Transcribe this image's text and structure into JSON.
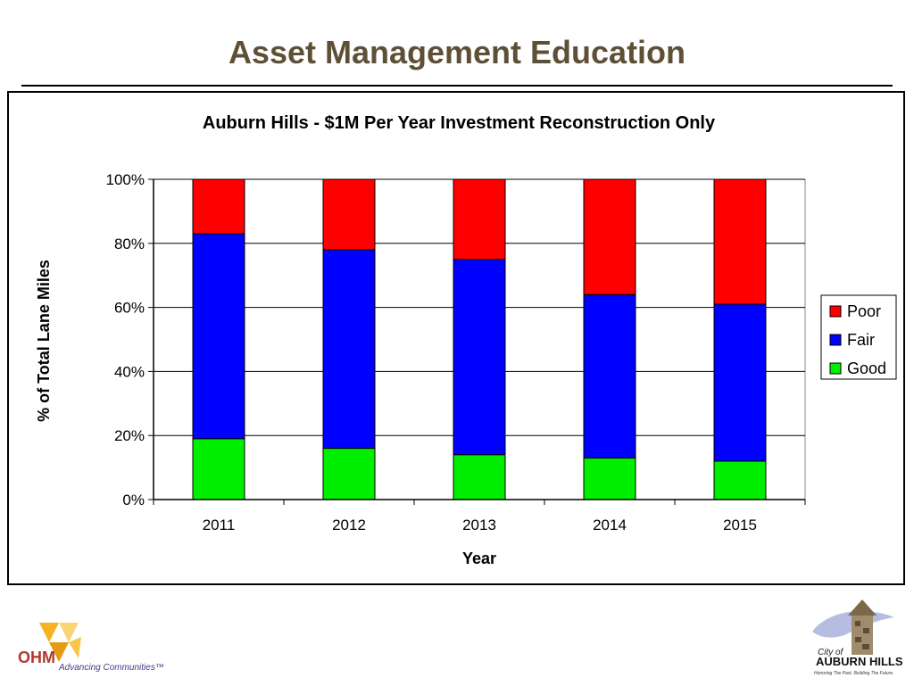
{
  "slide": {
    "title": "Asset Management Education"
  },
  "colors": {
    "title": "#5e5037",
    "poor": "#ff0000",
    "fair": "#0000ff",
    "good": "#00ee00"
  },
  "chart_data": {
    "type": "bar",
    "stacked": true,
    "title": "Auburn Hills - $1M Per Year Investment Reconstruction Only",
    "xlabel": "Year",
    "ylabel": "% of Total Lane Miles",
    "categories": [
      "2011",
      "2012",
      "2013",
      "2014",
      "2015"
    ],
    "ylim": [
      0,
      100
    ],
    "yticks": [
      0,
      20,
      40,
      60,
      80,
      100
    ],
    "ytick_labels": [
      "0%",
      "20%",
      "40%",
      "60%",
      "80%",
      "100%"
    ],
    "grid": true,
    "legend_position": "right",
    "legend": [
      "Poor",
      "Fair",
      "Good"
    ],
    "series": [
      {
        "name": "Good",
        "color": "#00ee00",
        "values": [
          19,
          16,
          14,
          13,
          12
        ]
      },
      {
        "name": "Fair",
        "color": "#0000ff",
        "values": [
          64,
          62,
          61,
          51,
          49
        ]
      },
      {
        "name": "Poor",
        "color": "#ff0000",
        "values": [
          17,
          22,
          25,
          36,
          39
        ]
      }
    ]
  },
  "logos": {
    "ohm": {
      "name": "OHM",
      "tagline": "Advancing Communities™"
    },
    "city": {
      "prefix": "City of",
      "name": "AUBURN HILLS",
      "tagline": "Honoring The Past. Building The Future."
    }
  }
}
